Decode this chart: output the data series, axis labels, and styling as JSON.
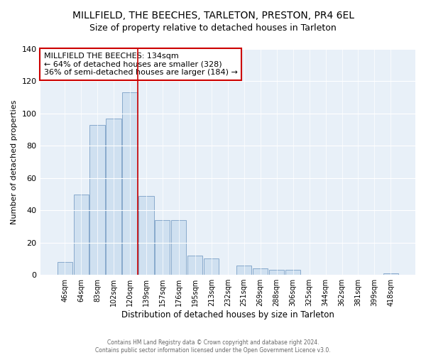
{
  "title": "MILLFIELD, THE BEECHES, TARLETON, PRESTON, PR4 6EL",
  "subtitle": "Size of property relative to detached houses in Tarleton",
  "xlabel": "Distribution of detached houses by size in Tarleton",
  "ylabel": "Number of detached properties",
  "bar_labels": [
    "46sqm",
    "64sqm",
    "83sqm",
    "102sqm",
    "120sqm",
    "139sqm",
    "157sqm",
    "176sqm",
    "195sqm",
    "213sqm",
    "232sqm",
    "251sqm",
    "269sqm",
    "288sqm",
    "306sqm",
    "325sqm",
    "344sqm",
    "362sqm",
    "381sqm",
    "399sqm",
    "418sqm"
  ],
  "bar_values": [
    8,
    50,
    93,
    97,
    113,
    49,
    34,
    34,
    12,
    10,
    0,
    6,
    4,
    3,
    3,
    0,
    0,
    0,
    0,
    0,
    1
  ],
  "bar_color": "#cfe0f0",
  "bar_edge_color": "#88aacc",
  "annotation_line1": "MILLFIELD THE BEECHES: 134sqm",
  "annotation_line2": "← 64% of detached houses are smaller (328)",
  "annotation_line3": "36% of semi-detached houses are larger (184) →",
  "annotation_box_color": "#cc0000",
  "footer_line1": "Contains HM Land Registry data © Crown copyright and database right 2024.",
  "footer_line2": "Contains public sector information licensed under the Open Government Licence v3.0.",
  "ylim": [
    0,
    140
  ],
  "yticks": [
    0,
    20,
    40,
    60,
    80,
    100,
    120,
    140
  ],
  "bg_color": "#ffffff",
  "plot_bg_color": "#e8f0f8",
  "red_line_x": 4.5,
  "title_fontsize": 10,
  "subtitle_fontsize": 9
}
